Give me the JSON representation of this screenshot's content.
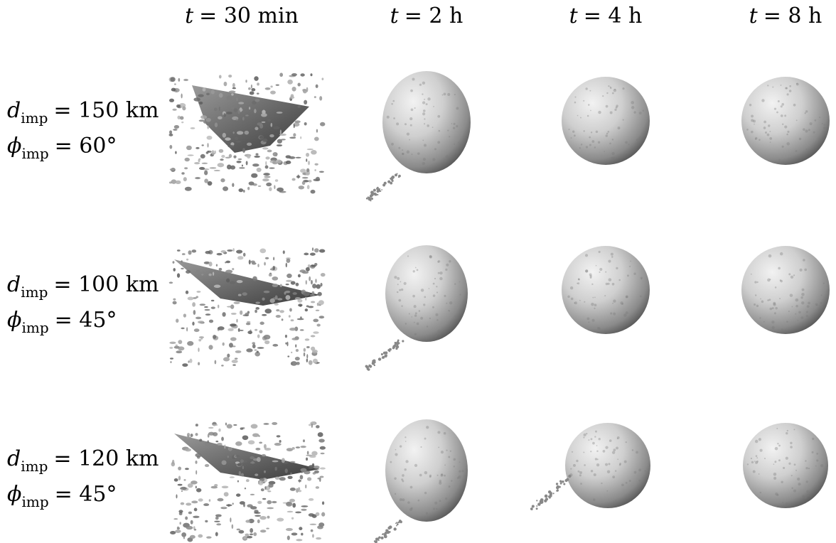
{
  "columns": [
    {
      "symbol": "t",
      "rest": "= 30 min"
    },
    {
      "symbol": "t",
      "rest": "= 2 h"
    },
    {
      "symbol": "t",
      "rest": "= 4 h"
    },
    {
      "symbol": "t",
      "rest": "= 8 h"
    }
  ],
  "rows": [
    {
      "d": {
        "symbol": "d",
        "sub": "imp",
        "rest": "= 150 km"
      },
      "phi": {
        "symbol": "ϕ",
        "sub": "imp",
        "rest": "= 60°"
      }
    },
    {
      "d": {
        "symbol": "d",
        "sub": "imp",
        "rest": "= 100 km"
      },
      "phi": {
        "symbol": "ϕ",
        "sub": "imp",
        "rest": "= 45°"
      }
    },
    {
      "d": {
        "symbol": "d",
        "sub": "imp",
        "rest": "= 120 km"
      },
      "phi": {
        "symbol": "ϕ",
        "sub": "imp",
        "rest": "= 45°"
      }
    }
  ]
}
